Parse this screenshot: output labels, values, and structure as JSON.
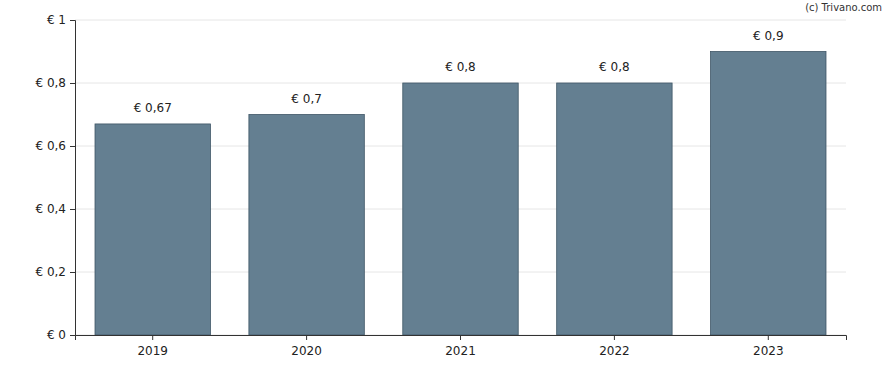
{
  "chart_data": {
    "type": "bar",
    "categories": [
      "2019",
      "2020",
      "2021",
      "2022",
      "2023"
    ],
    "values": [
      0.67,
      0.7,
      0.8,
      0.8,
      0.9
    ],
    "value_labels": [
      "€ 0,67",
      "€ 0,7",
      "€ 0,8",
      "€ 0,8",
      "€ 0,9"
    ],
    "color": "#647f91",
    "ylim": [
      0,
      1
    ],
    "yticks": [
      {
        "value": 0,
        "label": "€ 0"
      },
      {
        "value": 0.2,
        "label": "€ 0,2"
      },
      {
        "value": 0.4,
        "label": "€ 0,4"
      },
      {
        "value": 0.6,
        "label": "€ 0,6"
      },
      {
        "value": 0.8,
        "label": "€ 0,8"
      },
      {
        "value": 1,
        "label": "€ 1"
      }
    ],
    "grid": true,
    "data_labels": true,
    "annotations": [
      "(c) Trivano.com"
    ]
  }
}
